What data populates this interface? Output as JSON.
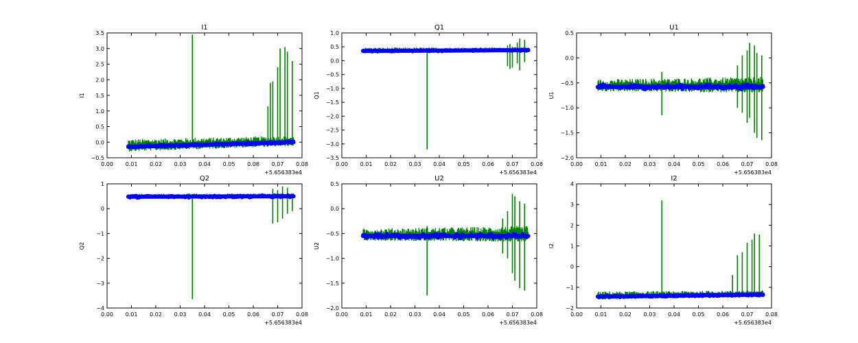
{
  "figure": {
    "background": "#ffffff",
    "colors": {
      "line_series": "#008000",
      "scatter_series": "#0000ff",
      "frame": "#000000"
    }
  },
  "chart_data": [
    {
      "type": "line",
      "title": "I1",
      "ylabel": "I1",
      "xlim": [
        0.0,
        0.08
      ],
      "ylim": [
        -0.5,
        3.5
      ],
      "x_ticks": [
        "0.00",
        "0.01",
        "0.02",
        "0.03",
        "0.04",
        "0.05",
        "0.06",
        "0.07",
        "0.08"
      ],
      "y_ticks": [
        "−0.5",
        "0.0",
        "0.5",
        "1.0",
        "1.5",
        "2.0",
        "2.5",
        "3.0",
        "3.5"
      ],
      "x_offset_label": "+5.656383e4",
      "x_range_data": [
        0.0087,
        0.0765
      ],
      "baseline": {
        "start": -0.15,
        "end": 0.0,
        "band": 0.08
      },
      "line_spread": {
        "start": 0.25,
        "end": 0.2
      },
      "spikes": [
        {
          "x": 0.035,
          "min": -0.1,
          "max": 3.45
        },
        {
          "x": 0.066,
          "min": -0.1,
          "max": 1.15
        },
        {
          "x": 0.067,
          "min": -0.1,
          "max": 1.9
        },
        {
          "x": 0.068,
          "min": -0.1,
          "max": 1.95
        },
        {
          "x": 0.07,
          "min": -0.1,
          "max": 2.4
        },
        {
          "x": 0.071,
          "min": -0.1,
          "max": 3.0
        },
        {
          "x": 0.073,
          "min": -0.1,
          "max": 3.05
        },
        {
          "x": 0.074,
          "min": -0.1,
          "max": 2.9
        },
        {
          "x": 0.076,
          "min": -0.1,
          "max": 2.6
        }
      ]
    },
    {
      "type": "line",
      "title": "Q1",
      "ylabel": "Q1",
      "xlim": [
        0.0,
        0.08
      ],
      "ylim": [
        -3.5,
        1.0
      ],
      "x_ticks": [
        "0.00",
        "0.01",
        "0.02",
        "0.03",
        "0.04",
        "0.05",
        "0.06",
        "0.07",
        "0.08"
      ],
      "y_ticks": [
        "−3.5",
        "−3.0",
        "−2.5",
        "−2.0",
        "−1.5",
        "−1.0",
        "−0.5",
        "0.0",
        "0.5",
        "1.0"
      ],
      "x_offset_label": "+5.656383e4",
      "x_range_data": [
        0.0087,
        0.0765
      ],
      "baseline": {
        "start": 0.35,
        "end": 0.38,
        "band": 0.06
      },
      "line_spread": {
        "start": 0.12,
        "end": 0.1
      },
      "spikes": [
        {
          "x": 0.035,
          "min": -3.2,
          "max": 0.4
        },
        {
          "x": 0.068,
          "min": -0.2,
          "max": 0.55
        },
        {
          "x": 0.069,
          "min": -0.3,
          "max": 0.6
        },
        {
          "x": 0.07,
          "min": -0.25,
          "max": 0.5
        },
        {
          "x": 0.072,
          "min": -0.1,
          "max": 0.65
        },
        {
          "x": 0.073,
          "min": -0.35,
          "max": 0.8
        },
        {
          "x": 0.075,
          "min": -0.05,
          "max": 0.75
        }
      ]
    },
    {
      "type": "line",
      "title": "U1",
      "ylabel": "U1",
      "xlim": [
        0.0,
        0.08
      ],
      "ylim": [
        -2.0,
        0.5
      ],
      "x_ticks": [
        "0.00",
        "0.01",
        "0.02",
        "0.03",
        "0.04",
        "0.05",
        "0.06",
        "0.07",
        "0.08"
      ],
      "y_ticks": [
        "−2.0",
        "−1.5",
        "−1.0",
        "−0.5",
        "0.0",
        "0.5"
      ],
      "x_offset_label": "+5.656383e4",
      "x_range_data": [
        0.0087,
        0.0765
      ],
      "baseline": {
        "start": -0.58,
        "end": -0.58,
        "band": 0.1
      },
      "line_spread": {
        "start": 0.15,
        "end": 0.2
      },
      "spikes": [
        {
          "x": 0.035,
          "min": -1.15,
          "max": -0.28
        },
        {
          "x": 0.066,
          "min": -1.0,
          "max": -0.15
        },
        {
          "x": 0.068,
          "min": -1.1,
          "max": 0.05
        },
        {
          "x": 0.07,
          "min": -1.3,
          "max": 0.15
        },
        {
          "x": 0.071,
          "min": -1.2,
          "max": 0.3
        },
        {
          "x": 0.073,
          "min": -1.5,
          "max": 0.25
        },
        {
          "x": 0.074,
          "min": -1.6,
          "max": 0.1
        },
        {
          "x": 0.076,
          "min": -1.65,
          "max": 0.05
        }
      ]
    },
    {
      "type": "line",
      "title": "Q2",
      "ylabel": "Q2",
      "xlim": [
        0.0,
        0.08
      ],
      "ylim": [
        -4.0,
        1.0
      ],
      "x_ticks": [
        "0.00",
        "0.01",
        "0.02",
        "0.03",
        "0.04",
        "0.05",
        "0.06",
        "0.07",
        "0.08"
      ],
      "y_ticks": [
        "−4",
        "−3",
        "−2",
        "−1",
        "0",
        "1"
      ],
      "x_offset_label": "+5.656383e4",
      "x_range_data": [
        0.0087,
        0.0765
      ],
      "baseline": {
        "start": 0.48,
        "end": 0.5,
        "band": 0.1
      },
      "line_spread": {
        "start": 0.12,
        "end": 0.12
      },
      "spikes": [
        {
          "x": 0.035,
          "min": -3.65,
          "max": 0.55
        },
        {
          "x": 0.068,
          "min": -0.6,
          "max": 0.8
        },
        {
          "x": 0.07,
          "min": -0.55,
          "max": 0.75
        },
        {
          "x": 0.072,
          "min": -0.4,
          "max": 0.9
        },
        {
          "x": 0.074,
          "min": -0.2,
          "max": 0.85
        },
        {
          "x": 0.076,
          "min": -0.1,
          "max": 0.6
        }
      ]
    },
    {
      "type": "line",
      "title": "U2",
      "ylabel": "U2",
      "xlim": [
        0.0,
        0.08
      ],
      "ylim": [
        -2.0,
        0.5
      ],
      "x_ticks": [
        "0.00",
        "0.01",
        "0.02",
        "0.03",
        "0.04",
        "0.05",
        "0.06",
        "0.07",
        "0.08"
      ],
      "y_ticks": [
        "−2.0",
        "−1.5",
        "−1.0",
        "−0.5",
        "0.0",
        "0.5"
      ],
      "x_offset_label": "+5.656383e4",
      "x_range_data": [
        0.0087,
        0.0765
      ],
      "baseline": {
        "start": -0.55,
        "end": -0.55,
        "band": 0.1
      },
      "line_spread": {
        "start": 0.15,
        "end": 0.2
      },
      "spikes": [
        {
          "x": 0.035,
          "min": -1.75,
          "max": -0.35
        },
        {
          "x": 0.066,
          "min": -0.9,
          "max": -0.2
        },
        {
          "x": 0.068,
          "min": -1.0,
          "max": -0.05
        },
        {
          "x": 0.07,
          "min": -1.3,
          "max": 0.3
        },
        {
          "x": 0.071,
          "min": -1.45,
          "max": 0.25
        },
        {
          "x": 0.073,
          "min": -1.6,
          "max": 0.15
        },
        {
          "x": 0.075,
          "min": -1.65,
          "max": 0.1
        }
      ]
    },
    {
      "type": "line",
      "title": "I2",
      "ylabel": "I2",
      "xlim": [
        0.0,
        0.08
      ],
      "ylim": [
        -2.0,
        4.0
      ],
      "x_ticks": [
        "0.00",
        "0.01",
        "0.02",
        "0.03",
        "0.04",
        "0.05",
        "0.06",
        "0.07",
        "0.08"
      ],
      "y_ticks": [
        "−2",
        "−1",
        "0",
        "1",
        "2",
        "3",
        "4"
      ],
      "x_offset_label": "+5.656383e4",
      "x_range_data": [
        0.0087,
        0.0765
      ],
      "baseline": {
        "start": -1.45,
        "end": -1.35,
        "band": 0.1
      },
      "line_spread": {
        "start": 0.25,
        "end": 0.2
      },
      "spikes": [
        {
          "x": 0.035,
          "min": -1.3,
          "max": 3.2
        },
        {
          "x": 0.064,
          "min": -1.3,
          "max": -0.4
        },
        {
          "x": 0.066,
          "min": -1.3,
          "max": 0.55
        },
        {
          "x": 0.068,
          "min": -1.3,
          "max": 0.7
        },
        {
          "x": 0.07,
          "min": -1.3,
          "max": 1.15
        },
        {
          "x": 0.072,
          "min": -1.3,
          "max": 1.3
        },
        {
          "x": 0.073,
          "min": -1.3,
          "max": 1.6
        },
        {
          "x": 0.075,
          "min": -1.3,
          "max": 1.55
        }
      ]
    }
  ]
}
